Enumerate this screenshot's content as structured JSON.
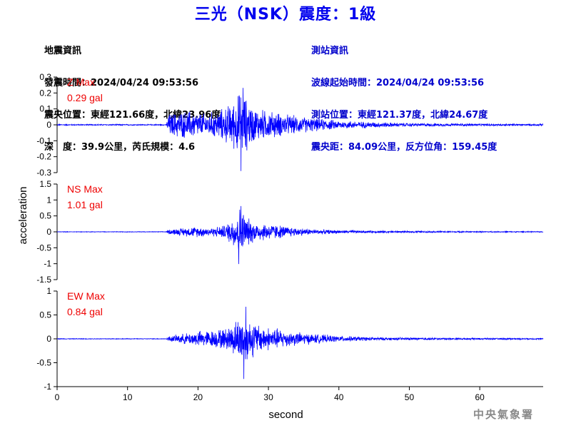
{
  "title": "三光（NSK）震度：1級",
  "earthquake_info": {
    "heading": "地震資訊",
    "origin_time": "發震時間：2024/04/24 09:53:56",
    "epicenter": "震央位置：東經121.66度，北緯23.96度",
    "depth_magnitude": "深　度：39.9公里，芮氏規模：4.6"
  },
  "station_info": {
    "heading": "測站資訊",
    "wave_start": "波線起始時間：2024/04/24 09:53:56",
    "location": "測站位置：東經121.37度，北緯24.67度",
    "distance": "震央距：84.09公里，反方位角：159.45度"
  },
  "agency": "中央氣象署",
  "chart_data": {
    "type": "line",
    "xlabel": "second",
    "ylabel": "acceleration",
    "xlim": [
      0,
      69
    ],
    "xticks": [
      0,
      10,
      20,
      30,
      40,
      50,
      60
    ],
    "line_color": "#0000ff",
    "panels": [
      {
        "component": "Z",
        "label": "Z Max",
        "max_text": "0.29 gal",
        "label_color": "#ee0000",
        "ylim": [
          -0.3,
          0.3
        ],
        "yticks": [
          0.3,
          0.2,
          0.1,
          0,
          -0.1,
          -0.2,
          -0.3
        ],
        "ytick_labels": [
          "0.3",
          "0.2",
          "0.1",
          "0",
          "-0.1",
          "-0.2",
          "-0.3"
        ],
        "envelope": [
          [
            0,
            0.004
          ],
          [
            15.5,
            0.004
          ],
          [
            15.8,
            0.08
          ],
          [
            17,
            0.09
          ],
          [
            19,
            0.1
          ],
          [
            21,
            0.08
          ],
          [
            23,
            0.1
          ],
          [
            25,
            0.16
          ],
          [
            26,
            0.24
          ],
          [
            27,
            0.18
          ],
          [
            28,
            0.12
          ],
          [
            30,
            0.1
          ],
          [
            33,
            0.07
          ],
          [
            36,
            0.05
          ],
          [
            40,
            0.03
          ],
          [
            45,
            0.02
          ],
          [
            50,
            0.012
          ],
          [
            60,
            0.008
          ],
          [
            69,
            0.006
          ]
        ],
        "peak": {
          "x": 26.1,
          "y": -0.29
        }
      },
      {
        "component": "NS",
        "label": "NS Max",
        "max_text": "1.01 gal",
        "label_color": "#ee0000",
        "ylim": [
          -1.5,
          1.5
        ],
        "yticks": [
          1.5,
          1,
          0.5,
          0,
          -0.5,
          -1,
          -1.5
        ],
        "ytick_labels": [
          "1.5",
          "1",
          "0.5",
          "0",
          "-0.5",
          "-1",
          "-1.5"
        ],
        "envelope": [
          [
            0,
            0.01
          ],
          [
            15.5,
            0.01
          ],
          [
            15.8,
            0.08
          ],
          [
            18,
            0.15
          ],
          [
            20,
            0.18
          ],
          [
            22,
            0.15
          ],
          [
            24,
            0.25
          ],
          [
            25.5,
            0.7
          ],
          [
            26,
            0.9
          ],
          [
            27,
            0.5
          ],
          [
            28,
            0.35
          ],
          [
            30,
            0.3
          ],
          [
            33,
            0.18
          ],
          [
            36,
            0.1
          ],
          [
            40,
            0.06
          ],
          [
            45,
            0.04
          ],
          [
            50,
            0.03
          ],
          [
            60,
            0.02
          ],
          [
            69,
            0.015
          ]
        ],
        "peak": {
          "x": 25.8,
          "y": -1.01
        }
      },
      {
        "component": "EW",
        "label": "EW Max",
        "max_text": "0.84 gal",
        "label_color": "#ee0000",
        "ylim": [
          -1,
          1
        ],
        "yticks": [
          1,
          0.5,
          0,
          -0.5,
          -1
        ],
        "ytick_labels": [
          "1",
          "0.5",
          "0",
          "-0.5",
          "-1"
        ],
        "envelope": [
          [
            0,
            0.008
          ],
          [
            15.5,
            0.008
          ],
          [
            15.8,
            0.06
          ],
          [
            18,
            0.12
          ],
          [
            20,
            0.18
          ],
          [
            22,
            0.2
          ],
          [
            24,
            0.25
          ],
          [
            25.5,
            0.45
          ],
          [
            26.5,
            0.6
          ],
          [
            27.5,
            0.45
          ],
          [
            29,
            0.3
          ],
          [
            31,
            0.25
          ],
          [
            33,
            0.18
          ],
          [
            36,
            0.12
          ],
          [
            40,
            0.07
          ],
          [
            45,
            0.04
          ],
          [
            50,
            0.03
          ],
          [
            60,
            0.02
          ],
          [
            69,
            0.015
          ]
        ],
        "peak": {
          "x": 26.5,
          "y": -0.84
        }
      }
    ]
  }
}
